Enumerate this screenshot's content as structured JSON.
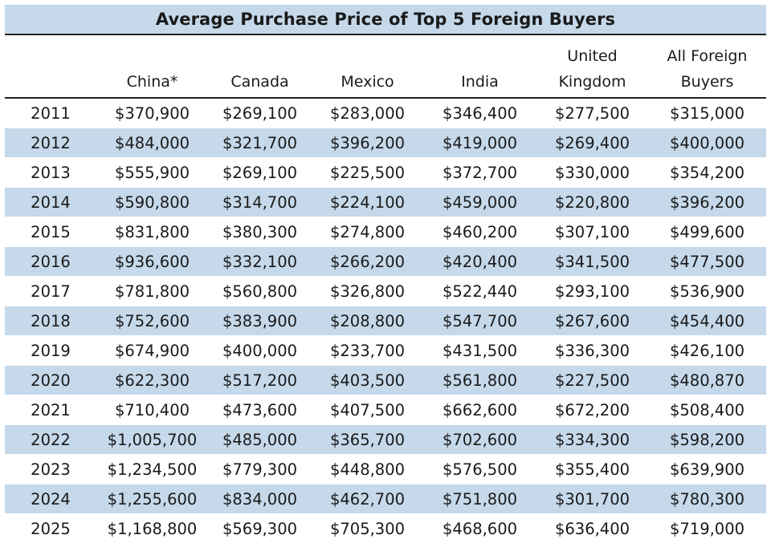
{
  "colors": {
    "band": "#c5d9ea",
    "rule": "#222222",
    "text": "#1a1a1a"
  },
  "chart_data": {
    "type": "table",
    "title": "Average Purchase Price of Top 5 Foreign Buyers",
    "columns": [
      "",
      "China*",
      "Canada",
      "Mexico",
      "India",
      "United Kingdom",
      "All Foreign Buyers"
    ],
    "header_lines": [
      [
        "",
        ""
      ],
      [
        "",
        "China*"
      ],
      [
        "",
        "Canada"
      ],
      [
        "",
        "Mexico"
      ],
      [
        "",
        "India"
      ],
      [
        "United",
        "Kingdom"
      ],
      [
        "All Foreign",
        "Buyers"
      ]
    ],
    "rows": [
      [
        "2011",
        "$370,900",
        "$269,100",
        "$283,000",
        "$346,400",
        "$277,500",
        "$315,000"
      ],
      [
        "2012",
        "$484,000",
        "$321,700",
        "$396,200",
        "$419,000",
        "$269,400",
        "$400,000"
      ],
      [
        "2013",
        "$555,900",
        "$269,100",
        "$225,500",
        "$372,700",
        "$330,000",
        "$354,200"
      ],
      [
        "2014",
        "$590,800",
        "$314,700",
        "$224,100",
        "$459,000",
        "$220,800",
        "$396,200"
      ],
      [
        "2015",
        "$831,800",
        "$380,300",
        "$274,800",
        "$460,200",
        "$307,100",
        "$499,600"
      ],
      [
        "2016",
        "$936,600",
        "$332,100",
        "$266,200",
        "$420,400",
        "$341,500",
        "$477,500"
      ],
      [
        "2017",
        "$781,800",
        "$560,800",
        "$326,800",
        "$522,440",
        "$293,100",
        "$536,900"
      ],
      [
        "2018",
        "$752,600",
        "$383,900",
        "$208,800",
        "$547,700",
        "$267,600",
        "$454,400"
      ],
      [
        "2019",
        "$674,900",
        "$400,000",
        "$233,700",
        "$431,500",
        "$336,300",
        "$426,100"
      ],
      [
        "2020",
        "$622,300",
        "$517,200",
        "$403,500",
        "$561,800",
        "$227,500",
        "$480,870"
      ],
      [
        "2021",
        "$710,400",
        "$473,600",
        "$407,500",
        "$662,600",
        "$672,200",
        "$508,400"
      ],
      [
        "2022",
        "$1,005,700",
        "$485,000",
        "$365,700",
        "$702,600",
        "$334,300",
        "$598,200"
      ],
      [
        "2023",
        "$1,234,500",
        "$779,300",
        "$448,800",
        "$576,500",
        "$355,400",
        "$639,900"
      ],
      [
        "2024",
        "$1,255,600",
        "$834,000",
        "$462,700",
        "$751,800",
        "$301,700",
        "$780,300"
      ],
      [
        "2025",
        "$1,168,800",
        "$569,300",
        "$705,300",
        "$468,600",
        "$636,400",
        "$719,000"
      ]
    ]
  }
}
